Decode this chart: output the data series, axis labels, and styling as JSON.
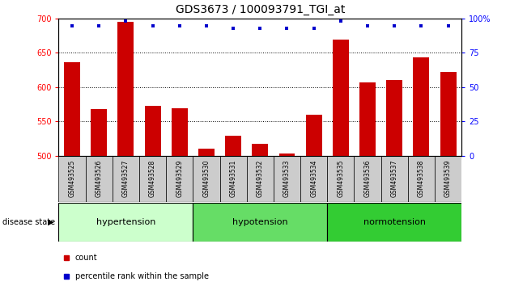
{
  "title": "GDS3673 / 100093791_TGI_at",
  "samples": [
    "GSM493525",
    "GSM493526",
    "GSM493527",
    "GSM493528",
    "GSM493529",
    "GSM493530",
    "GSM493531",
    "GSM493532",
    "GSM493533",
    "GSM493534",
    "GSM493535",
    "GSM493536",
    "GSM493537",
    "GSM493538",
    "GSM493539"
  ],
  "counts": [
    636,
    568,
    695,
    573,
    569,
    511,
    529,
    517,
    504,
    560,
    669,
    607,
    610,
    643,
    622
  ],
  "percentile_ranks": [
    95,
    95,
    98,
    95,
    95,
    95,
    93,
    93,
    93,
    93,
    98,
    95,
    95,
    95,
    95
  ],
  "bar_color": "#cc0000",
  "dot_color": "#0000cc",
  "ylim": [
    500,
    700
  ],
  "yticks_left": [
    500,
    550,
    600,
    650,
    700
  ],
  "yticks_right": [
    0,
    25,
    50,
    75,
    100
  ],
  "grid_values": [
    550,
    600,
    650
  ],
  "bar_width": 0.6,
  "background_color": "#ffffff",
  "tick_area_color": "#cccccc",
  "group_labels": [
    "hypertension",
    "hypotension",
    "normotension"
  ],
  "group_ranges": [
    [
      0,
      4
    ],
    [
      5,
      9
    ],
    [
      10,
      14
    ]
  ],
  "group_colors": [
    "#ccffcc",
    "#66dd66",
    "#33cc33"
  ]
}
